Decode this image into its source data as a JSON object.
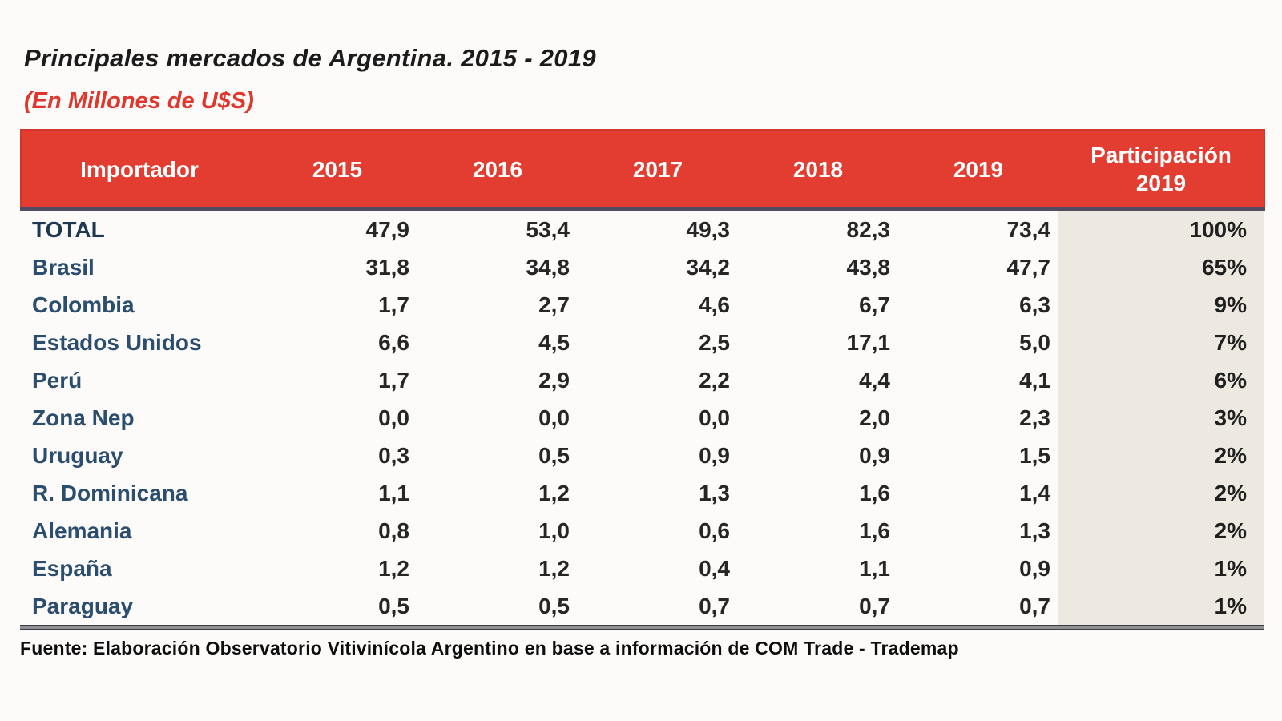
{
  "page": {
    "title": "Principales mercados de Argentina. 2015 - 2019",
    "subtitle": "(En Millones de U$S)",
    "source": "Fuente: Elaboración Observatorio Vitivinícola Argentino en base a información de COM Trade - Trademap"
  },
  "colors": {
    "header_bg": "#e23d30",
    "header_border": "#cf372a",
    "header_text": "#ffffff",
    "header_rule_dark": "#534a63",
    "header_rule_light": "#dde4ef",
    "row_label_text": "#2b4d6e",
    "total_label_text": "#1d3850",
    "value_text": "#262626",
    "participation_col_bg": "#ede9e0",
    "subtitle_red": "#e0362c",
    "bottom_rule": "#3b3b41"
  },
  "chart_data": {
    "type": "table",
    "title": "Principales mercados de Argentina. 2015 - 2019",
    "units": "Millones de U$S",
    "columns": [
      "Importador",
      "2015",
      "2016",
      "2017",
      "2018",
      "2019",
      "Participación 2019"
    ],
    "rows": [
      [
        "TOTAL",
        "47,9",
        "53,4",
        "49,3",
        "82,3",
        "73,4",
        "100%"
      ],
      [
        "Brasil",
        "31,8",
        "34,8",
        "34,2",
        "43,8",
        "47,7",
        "65%"
      ],
      [
        "Colombia",
        "1,7",
        "2,7",
        "4,6",
        "6,7",
        "6,3",
        "9%"
      ],
      [
        "Estados Unidos",
        "6,6",
        "4,5",
        "2,5",
        "17,1",
        "5,0",
        "7%"
      ],
      [
        "Perú",
        "1,7",
        "2,9",
        "2,2",
        "4,4",
        "4,1",
        "6%"
      ],
      [
        "Zona Nep",
        "0,0",
        "0,0",
        "0,0",
        "2,0",
        "2,3",
        "3%"
      ],
      [
        "Uruguay",
        "0,3",
        "0,5",
        "0,9",
        "0,9",
        "1,5",
        "2%"
      ],
      [
        "R. Dominicana",
        "1,1",
        "1,2",
        "1,3",
        "1,6",
        "1,4",
        "2%"
      ],
      [
        "Alemania",
        "0,8",
        "1,0",
        "0,6",
        "1,6",
        "1,3",
        "2%"
      ],
      [
        "España",
        "1,2",
        "1,2",
        "0,4",
        "1,1",
        "0,9",
        "1%"
      ],
      [
        "Paraguay",
        "0,5",
        "0,5",
        "0,7",
        "0,7",
        "0,7",
        "1%"
      ]
    ],
    "source": "Fuente: Elaboración Observatorio Vitivinícola Argentino en base a información de COM Trade - Trademap"
  }
}
